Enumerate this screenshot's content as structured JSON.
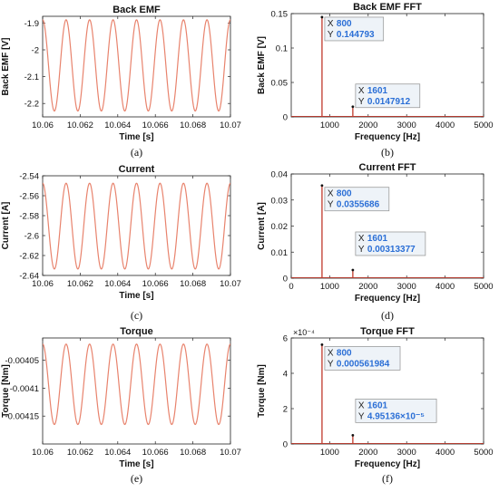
{
  "chart_data": [
    {
      "type": "line",
      "title": "Back EMF",
      "xlabel": "Time [s]",
      "ylabel": "Back EMF [V]",
      "caption": "(a)",
      "xlim": [
        10.06,
        10.07
      ],
      "ylim": [
        -2.25,
        -1.875
      ],
      "xticks": [
        10.06,
        10.062,
        10.064,
        10.066,
        10.068,
        10.07
      ],
      "xtick_labels": [
        "10.06",
        "10.062",
        "10.064",
        "10.066",
        "10.068",
        "10.07"
      ],
      "yticks": [
        -2.2,
        -2.1,
        -2.0,
        -1.9
      ],
      "ytick_labels": [
        "-2.2",
        "-2.1",
        "-2",
        "-1.9"
      ],
      "series": [
        {
          "kind": "sine",
          "mean": -2.058,
          "amplitude": 0.17,
          "frequency_hz": 800,
          "phase_deg": 90,
          "color": "#e8836d"
        }
      ]
    },
    {
      "type": "line",
      "title": "Back EMF FFT",
      "xlabel": "Frequency [Hz]",
      "ylabel": "Back EMF [V]",
      "caption": "(b)",
      "xlim": [
        0,
        5000
      ],
      "ylim": [
        0,
        0.15
      ],
      "xticks": [
        1000,
        2000,
        3000,
        4000,
        5000
      ],
      "xtick_labels": [
        "1000",
        "2000",
        "3000",
        "4000",
        "5000"
      ],
      "yticks": [
        0,
        0.05,
        0.1,
        0.15
      ],
      "ytick_labels": [
        "0",
        "0.05",
        "0.1",
        "0.15"
      ],
      "series": [
        {
          "kind": "spectrum",
          "x": [
            800,
            1601
          ],
          "y": [
            0.144793,
            0.0147912
          ],
          "color": "#c0392b"
        }
      ],
      "annotations": [
        {
          "x_label": "X",
          "x_value": "800",
          "y_label": "Y",
          "y_value": "0.144793"
        },
        {
          "x_label": "X",
          "x_value": "1601",
          "y_label": "Y",
          "y_value": "0.0147912"
        }
      ]
    },
    {
      "type": "line",
      "title": "Current",
      "xlabel": "Time [s]",
      "ylabel": "Current [A]",
      "caption": "(c)",
      "xlim": [
        10.06,
        10.07
      ],
      "ylim": [
        -2.64,
        -2.54
      ],
      "xticks": [
        10.06,
        10.062,
        10.064,
        10.066,
        10.068,
        10.07
      ],
      "xtick_labels": [
        "10.06",
        "10.062",
        "10.064",
        "10.066",
        "10.068",
        "10.07"
      ],
      "yticks": [
        -2.64,
        -2.62,
        -2.6,
        -2.58,
        -2.56,
        -2.54
      ],
      "ytick_labels": [
        "-2.64",
        "-2.62",
        "-2.6",
        "-2.58",
        "-2.56",
        "-2.54"
      ],
      "series": [
        {
          "kind": "sine",
          "mean": -2.5905,
          "amplitude": 0.043,
          "frequency_hz": 800,
          "phase_deg": 90,
          "color": "#e8836d"
        }
      ]
    },
    {
      "type": "line",
      "title": "Current FFT",
      "xlabel": "Frequency [Hz]",
      "ylabel": "Current [A]",
      "caption": "(d)",
      "xlim": [
        0,
        5000
      ],
      "ylim": [
        0,
        0.04
      ],
      "xticks": [
        0,
        1000,
        2000,
        3000,
        4000,
        5000
      ],
      "xtick_labels": [
        "0",
        "1000",
        "2000",
        "3000",
        "4000",
        "5000"
      ],
      "yticks": [
        0,
        0.01,
        0.02,
        0.03,
        0.04
      ],
      "ytick_labels": [
        "0",
        "0.01",
        "0.02",
        "0.03",
        "0.04"
      ],
      "series": [
        {
          "kind": "spectrum",
          "x": [
            800,
            1601
          ],
          "y": [
            0.0355686,
            0.00313377
          ],
          "color": "#c0392b"
        }
      ],
      "annotations": [
        {
          "x_label": "X",
          "x_value": "800",
          "y_label": "Y",
          "y_value": "0.0355686"
        },
        {
          "x_label": "X",
          "x_value": "1601",
          "y_label": "Y",
          "y_value": "0.00313377"
        }
      ]
    },
    {
      "type": "line",
      "title": "Torque",
      "xlabel": "Time [s]",
      "ylabel": "Torque [Nm]",
      "caption": "(e)",
      "xlim": [
        10.06,
        10.07
      ],
      "ylim": [
        -0.0042,
        -0.00401
      ],
      "xticks": [
        10.06,
        10.062,
        10.064,
        10.066,
        10.068,
        10.07
      ],
      "xtick_labels": [
        "10.06",
        "10.062",
        "10.064",
        "10.066",
        "10.068",
        "10.07"
      ],
      "yticks": [
        -0.00415,
        -0.0041,
        -0.00405
      ],
      "ytick_labels": [
        "-0.00415",
        "-0.0041",
        "-0.00405"
      ],
      "series": [
        {
          "kind": "sine",
          "mean": -0.004093,
          "amplitude": 7.2e-05,
          "frequency_hz": 800,
          "phase_deg": 90,
          "color": "#e8836d"
        }
      ]
    },
    {
      "type": "line",
      "title": "Torque FFT",
      "xlabel": "Frequency [Hz]",
      "ylabel": "Torque [Nm]",
      "caption": "(f)",
      "xlim": [
        0,
        5000
      ],
      "ylim": [
        0,
        0.0006
      ],
      "y_multiplier": "×10⁻⁴",
      "xticks": [
        1000,
        2000,
        3000,
        4000,
        5000
      ],
      "xtick_labels": [
        "1000",
        "2000",
        "3000",
        "4000",
        "5000"
      ],
      "yticks": [
        0,
        0.0002,
        0.0004,
        0.0006
      ],
      "ytick_labels": [
        "0",
        "2",
        "4",
        "6"
      ],
      "series": [
        {
          "kind": "spectrum",
          "x": [
            800,
            1601
          ],
          "y": [
            0.000561984,
            4.95136e-05
          ],
          "color": "#c0392b"
        }
      ],
      "annotations": [
        {
          "x_label": "X",
          "x_value": "800",
          "y_label": "Y",
          "y_value": "0.000561984"
        },
        {
          "x_label": "X",
          "x_value": "1601",
          "y_label": "Y",
          "y_value": "4.95136×10⁻⁵"
        }
      ]
    }
  ]
}
